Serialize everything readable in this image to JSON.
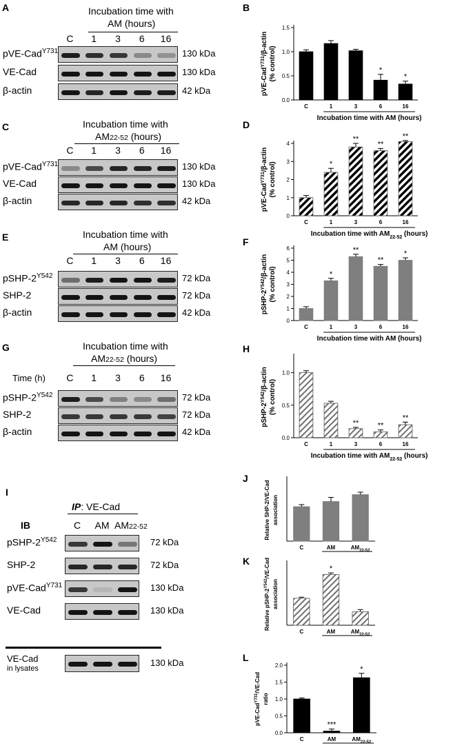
{
  "panels": {
    "A": {
      "label": "A",
      "header": [
        "Incubation time with",
        "AM (hours)"
      ],
      "lanes": [
        "C",
        "1",
        "3",
        "6",
        "16"
      ],
      "rows": [
        {
          "name": "pVE-Cad",
          "sup": "Y731",
          "size": "130 kDa",
          "intensities": [
            0.95,
            0.85,
            0.8,
            0.35,
            0.3
          ]
        },
        {
          "name": "VE-Cad",
          "sup": "",
          "size": "130 kDa",
          "intensities": [
            1,
            1,
            1,
            1,
            1
          ]
        },
        {
          "name": "β-actin",
          "sup": "",
          "size": "42 kDa",
          "intensities": [
            1,
            0.9,
            1,
            0.95,
            0.95
          ]
        }
      ]
    },
    "C": {
      "label": "C",
      "header": [
        "Incubation time with",
        "AM22-52 (hours)"
      ],
      "lanes": [
        "C",
        "1",
        "3",
        "6",
        "16"
      ],
      "rows": [
        {
          "name": "pVE-Cad",
          "sup": "Y731",
          "size": "130 kDa",
          "intensities": [
            0.35,
            0.7,
            0.9,
            0.9,
            0.95
          ]
        },
        {
          "name": "VE-Cad",
          "sup": "",
          "size": "130 kDa",
          "intensities": [
            1,
            1,
            1,
            1,
            1
          ]
        },
        {
          "name": "β-actin",
          "sup": "",
          "size": "42 kDa",
          "intensities": [
            0.9,
            0.9,
            0.9,
            0.85,
            0.85
          ]
        }
      ]
    },
    "E": {
      "label": "E",
      "header": [
        "Incubation time with",
        "AM (hours)"
      ],
      "lanes": [
        "C",
        "1",
        "3",
        "6",
        "16"
      ],
      "rows": [
        {
          "name": "pSHP-2",
          "sup": "Y542",
          "size": "72 kDa",
          "intensities": [
            0.5,
            0.95,
            1,
            1,
            0.95
          ]
        },
        {
          "name": "SHP-2",
          "sup": "",
          "size": "72 kDa",
          "intensities": [
            1,
            1,
            1,
            1,
            1
          ]
        },
        {
          "name": "β-actin",
          "sup": "",
          "size": "42 kDa",
          "intensities": [
            1,
            1,
            1,
            1,
            1
          ]
        }
      ]
    },
    "G": {
      "label": "G",
      "header": [
        "Incubation time with",
        "AM22-52 (hours)"
      ],
      "time_label": "Time (h)",
      "lanes": [
        "C",
        "1",
        "3",
        "6",
        "16"
      ],
      "rows": [
        {
          "name": "pSHP-2",
          "sup": "Y542",
          "size": "72 kDa",
          "intensities": [
            0.95,
            0.7,
            0.4,
            0.35,
            0.5
          ]
        },
        {
          "name": "SHP-2",
          "sup": "",
          "size": "72 kDa",
          "intensities": [
            0.8,
            0.8,
            0.8,
            0.8,
            0.75
          ]
        },
        {
          "name": "β-actin",
          "sup": "",
          "size": "42 kDa",
          "intensities": [
            1,
            1,
            1,
            1,
            1
          ]
        }
      ]
    },
    "I": {
      "label": "I",
      "ip_prefix": "IP",
      "ip_text": ": VE-Cad",
      "ib_label": "IB",
      "lanes": [
        "C",
        "AM",
        "AM22-52"
      ],
      "rows": [
        {
          "name": "pSHP-2",
          "sup": "Y542",
          "size": "72 kDa",
          "intensities": [
            0.8,
            1,
            0.45
          ]
        },
        {
          "name": "SHP-2",
          "sup": "",
          "size": "72 kDa",
          "intensities": [
            0.9,
            0.9,
            0.9
          ]
        },
        {
          "name": "pVE-Cad",
          "sup": "Y731",
          "size": "130 kDa",
          "intensities": [
            0.8,
            0.1,
            1
          ]
        },
        {
          "name": "VE-Cad",
          "sup": "",
          "size": "130 kDa",
          "intensities": [
            1,
            1,
            1
          ]
        }
      ],
      "lysate_label": [
        "VE-Cad",
        "in lysates"
      ],
      "lysate_size": "130 kDa",
      "lysate_intensities": [
        1,
        1,
        1
      ]
    }
  },
  "chart_data": [
    {
      "panel": "B",
      "type": "bar",
      "fill": "solid",
      "color": "#000000",
      "categories": [
        "C",
        "1",
        "3",
        "6",
        "16"
      ],
      "values": [
        1.0,
        1.17,
        1.02,
        0.41,
        0.33
      ],
      "errors": [
        0.04,
        0.06,
        0.03,
        0.12,
        0.06
      ],
      "stars": [
        "",
        "",
        "",
        "*",
        "*"
      ],
      "ylim": [
        0,
        1.5
      ],
      "yticks": [
        "0.0",
        "0.5",
        "1.0",
        "1.5"
      ],
      "ylabel_lines": [
        "pVE-Cad^Y731/β-actin",
        "(% control)"
      ],
      "xlabel": "Incubation time with AM (hours)"
    },
    {
      "panel": "D",
      "type": "bar",
      "fill": "hatch-dense",
      "color": "#000000",
      "categories": [
        "C",
        "1",
        "3",
        "6",
        "16"
      ],
      "values": [
        1.0,
        2.4,
        3.8,
        3.6,
        4.1
      ],
      "errors": [
        0.12,
        0.22,
        0.2,
        0.12,
        0.06
      ],
      "stars": [
        "",
        "*",
        "**",
        "**",
        "**"
      ],
      "ylim": [
        0,
        4
      ],
      "yticks": [
        "0",
        "1",
        "2",
        "3",
        "4"
      ],
      "ylabel_lines": [
        "pVE-Cad^Y731/β-actin",
        "(% control)"
      ],
      "xlabel": "Incubation time with AM22-52 (hours)"
    },
    {
      "panel": "F",
      "type": "bar",
      "fill": "solid",
      "color": "#7f7f7f",
      "categories": [
        "C",
        "1",
        "3",
        "6",
        "16"
      ],
      "values": [
        1.0,
        3.3,
        5.3,
        4.5,
        5.0
      ],
      "errors": [
        0.15,
        0.2,
        0.2,
        0.15,
        0.2
      ],
      "stars": [
        "",
        "*",
        "**",
        "**",
        "*"
      ],
      "ylim": [
        0,
        6
      ],
      "yticks": [
        "0",
        "1",
        "2",
        "3",
        "4",
        "5",
        "6"
      ],
      "ylabel_lines": [
        "pSHP-2^Y542/β-actin",
        "(% control)"
      ],
      "xlabel": "Incubation time with AM (hours)"
    },
    {
      "panel": "H",
      "type": "bar",
      "fill": "hatch-light",
      "color": "#707070",
      "categories": [
        "C",
        "1",
        "3",
        "6",
        "16"
      ],
      "values": [
        1.0,
        0.53,
        0.14,
        0.09,
        0.2
      ],
      "errors": [
        0.03,
        0.03,
        0.02,
        0.03,
        0.04
      ],
      "stars": [
        "",
        "",
        "**",
        "**",
        "**"
      ],
      "ylim": [
        0,
        1.25
      ],
      "yticks": [
        "0.0",
        "0.5",
        "1.0"
      ],
      "ylabel_lines": [
        "pSHP-2^Y542/β-actin",
        "(% control)"
      ],
      "xlabel": "Incubation time with AM22-52 (hours)"
    },
    {
      "panel": "J",
      "type": "bar",
      "fill": "solid",
      "color": "#7f7f7f",
      "categories": [
        "C",
        "AM",
        "AM22-52"
      ],
      "values": [
        1.0,
        1.15,
        1.35
      ],
      "errors": [
        0.06,
        0.12,
        0.07
      ],
      "stars": [
        "",
        "",
        ""
      ],
      "ylim": [
        0,
        1.8
      ],
      "yticks": [],
      "ylabel_lines": [
        "Relative SHP-2/VE-Cad",
        "association"
      ],
      "xlabel": ""
    },
    {
      "panel": "K",
      "type": "bar",
      "fill": "hatch-light",
      "color": "#707070",
      "categories": [
        "C",
        "AM",
        "AM22-52"
      ],
      "values": [
        1.0,
        1.88,
        0.5
      ],
      "errors": [
        0.04,
        0.06,
        0.08
      ],
      "stars": [
        "",
        "*",
        ""
      ],
      "ylim": [
        0,
        2.3
      ],
      "yticks": [],
      "ylabel_lines": [
        "Relative pSHP-2^Y542/VE-Cad",
        "association"
      ],
      "xlabel": ""
    },
    {
      "panel": "L",
      "type": "bar",
      "fill": "solid",
      "color": "#000000",
      "categories": [
        "C",
        "AM",
        "AM22-52"
      ],
      "values": [
        1.0,
        0.05,
        1.63
      ],
      "errors": [
        0.03,
        0.06,
        0.13
      ],
      "stars": [
        "",
        "***",
        "*"
      ],
      "ylim": [
        0,
        2.0
      ],
      "yticks": [
        "0.0",
        "0.5",
        "1.0",
        "1.5",
        "2.0"
      ],
      "ylabel_lines": [
        "pVE-Cad^Y731/VE-Cad",
        "ratio"
      ],
      "xlabel": ""
    }
  ]
}
